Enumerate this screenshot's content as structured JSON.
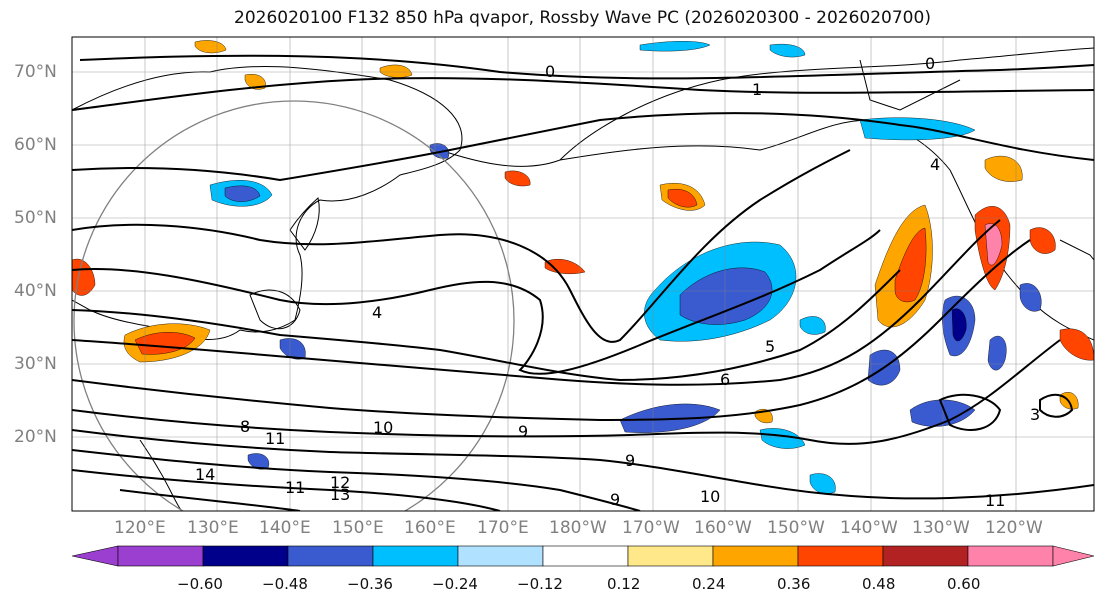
{
  "title": "2026020100 F132 850 hPa qvapor, Rossby Wave PC (2026020300 - 2026020700)",
  "lat_labels": [
    "70°N",
    "60°N",
    "50°N",
    "40°N",
    "30°N",
    "20°N"
  ],
  "lon_labels": [
    "120°E",
    "130°E",
    "140°E",
    "150°E",
    "160°E",
    "170°E",
    "180°W",
    "170°W",
    "160°W",
    "150°W",
    "140°W",
    "130°W",
    "120°W"
  ],
  "colorbar": {
    "ticks": [
      "−0.60",
      "−0.48",
      "−0.36",
      "−0.24",
      "−0.12",
      "0.12",
      "0.24",
      "0.36",
      "0.48",
      "0.60"
    ],
    "colors": [
      "#9b3fd0",
      "#00008b",
      "#3a5bd0",
      "#00bfff",
      "#b0e2ff",
      "#ffffff",
      "#ffe88a",
      "#ffa500",
      "#ff4500",
      "#b22222",
      "#ff82ab"
    ]
  },
  "contour_labels": [
    "0",
    "0",
    "1",
    "4",
    "5",
    "6",
    "8",
    "9",
    "9",
    "10",
    "10",
    "11",
    "11",
    "11",
    "12",
    "13",
    "14",
    "9",
    "3",
    "4"
  ]
}
